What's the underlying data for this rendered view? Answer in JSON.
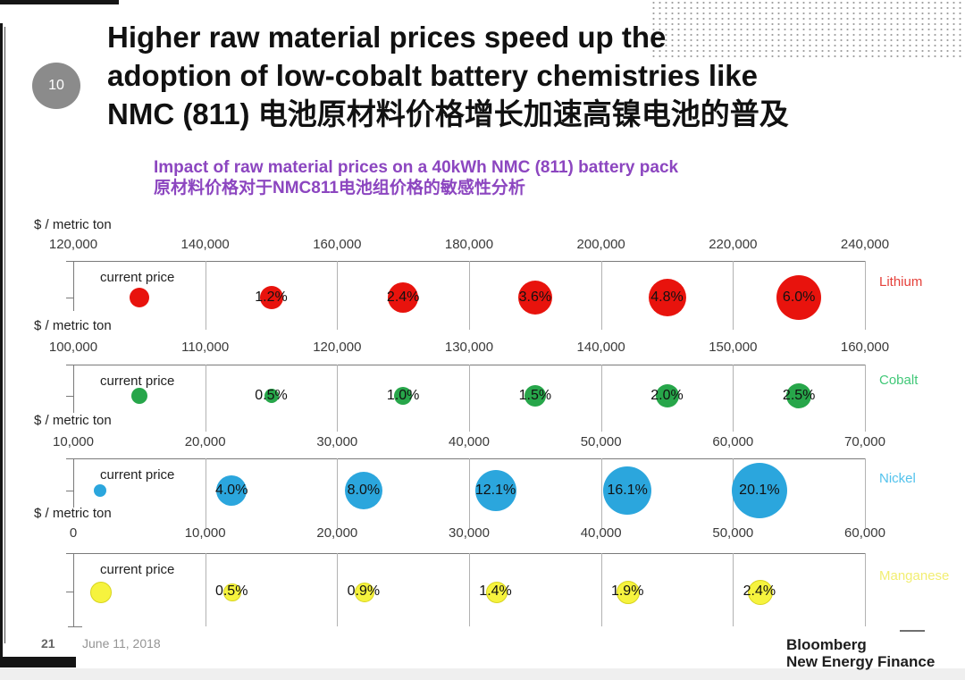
{
  "page": {
    "slide_number": "10",
    "title_lines": [
      "Higher raw material prices speed up the",
      "adoption of low-cobalt battery chemistries like",
      "NMC (811) 电池原材料价格增长加速高镍电池的普及"
    ],
    "footer": {
      "page_number": "21",
      "date": "June 11, 2018"
    },
    "logo": {
      "line1": "Bloomberg",
      "line2": "New Energy Finance"
    },
    "colors": {
      "title": "#111111",
      "subtitle_purple": "#8c46c0",
      "page_circle_gray": "#8b8b8b",
      "gridline": "#b2b2b2",
      "axis": "#7a7a7a"
    }
  },
  "chart_data": {
    "type": "scatter",
    "title": "Impact of raw material prices on a 40kWh NMC (811) battery pack",
    "title_zh": "原材料价格对于NMC811电池组价格的敏感性分析",
    "unit_label": "$ / metric ton",
    "current_price_label": "current price",
    "legend_position": "right",
    "grid": true,
    "series": [
      {
        "name": "Lithium",
        "color": "#e8130d",
        "label_color": "#e5403a",
        "xlim": [
          120000,
          240000
        ],
        "tick_step": 20000,
        "tick_labels": [
          "120,000",
          "140,000",
          "160,000",
          "180,000",
          "200,000",
          "220,000",
          "240,000"
        ],
        "current_price": 130000,
        "current_r": 11,
        "points": [
          {
            "price": 150000,
            "impact": "1.2%",
            "r": 13
          },
          {
            "price": 170000,
            "impact": "2.4%",
            "r": 17
          },
          {
            "price": 190000,
            "impact": "3.6%",
            "r": 19
          },
          {
            "price": 210000,
            "impact": "4.8%",
            "r": 21
          },
          {
            "price": 230000,
            "impact": "6.0%",
            "r": 25
          }
        ]
      },
      {
        "name": "Cobalt",
        "color": "#27a64a",
        "label_color": "#41c878",
        "xlim": [
          100000,
          160000
        ],
        "tick_step": 10000,
        "tick_labels": [
          "100,000",
          "110,000",
          "120,000",
          "130,000",
          "140,000",
          "150,000",
          "160,000"
        ],
        "current_price": 105000,
        "current_r": 9,
        "points": [
          {
            "price": 115000,
            "impact": "0.5%",
            "r": 8
          },
          {
            "price": 125000,
            "impact": "1.0%",
            "r": 10
          },
          {
            "price": 135000,
            "impact": "1.5%",
            "r": 12
          },
          {
            "price": 145000,
            "impact": "2.0%",
            "r": 13
          },
          {
            "price": 155000,
            "impact": "2.5%",
            "r": 14
          }
        ]
      },
      {
        "name": "Nickel",
        "color": "#2ba6dd",
        "label_color": "#52c2ec",
        "xlim": [
          10000,
          70000
        ],
        "tick_step": 10000,
        "tick_labels": [
          "10,000",
          "20,000",
          "30,000",
          "40,000",
          "50,000",
          "60,000",
          "70,000"
        ],
        "current_price": 12000,
        "current_r": 7,
        "points": [
          {
            "price": 22000,
            "impact": "4.0%",
            "r": 17
          },
          {
            "price": 32000,
            "impact": "8.0%",
            "r": 21
          },
          {
            "price": 42000,
            "impact": "12.1%",
            "r": 23
          },
          {
            "price": 52000,
            "impact": "16.1%",
            "r": 27
          },
          {
            "price": 62000,
            "impact": "20.1%",
            "r": 31
          }
        ]
      },
      {
        "name": "Manganese",
        "color": "#f6f33e",
        "border_color": "#d8d41f",
        "label_color": "#f2ee72",
        "xlim": [
          0,
          60000
        ],
        "tick_step": 10000,
        "tick_labels": [
          "0",
          "10,000",
          "20,000",
          "30,000",
          "40,000",
          "50,000",
          "60,000"
        ],
        "current_price": 2000,
        "current_r": 11,
        "points": [
          {
            "price": 12000,
            "impact": "0.5%",
            "r": 9
          },
          {
            "price": 22000,
            "impact": "0.9%",
            "r": 10
          },
          {
            "price": 32000,
            "impact": "1.4%",
            "r": 11
          },
          {
            "price": 42000,
            "impact": "1.9%",
            "r": 12
          },
          {
            "price": 52000,
            "impact": "2.4%",
            "r": 13
          }
        ]
      }
    ]
  }
}
